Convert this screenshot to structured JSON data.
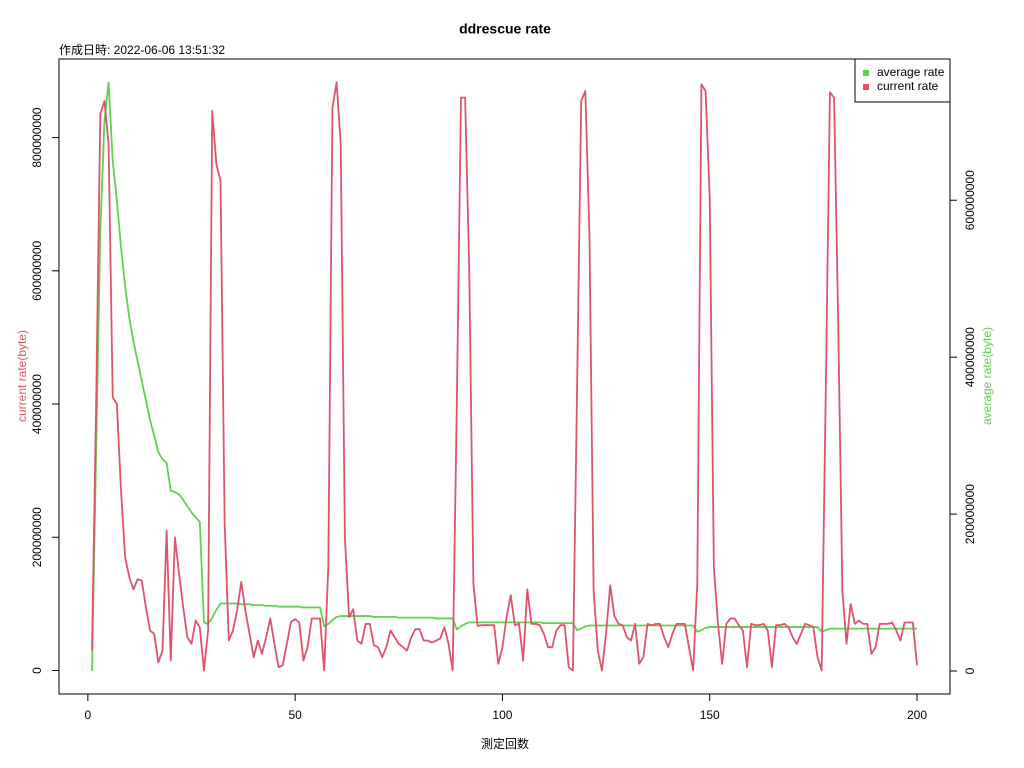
{
  "chart_data": {
    "type": "line",
    "title": "ddrescue rate",
    "subtitle": "作成日時: 2022-06-06 13:51:32",
    "xlabel": "測定回数",
    "ylabel": "current rate(byte)",
    "y2label": "average rate(byte)",
    "legend": "topright",
    "x": [
      1,
      2,
      3,
      4,
      5,
      6,
      7,
      8,
      9,
      10,
      11,
      12,
      13,
      14,
      15,
      16,
      17,
      18,
      19,
      20,
      21,
      22,
      23,
      24,
      25,
      26,
      27,
      28,
      29,
      30,
      31,
      32,
      33,
      34,
      35,
      36,
      37,
      38,
      39,
      40,
      41,
      42,
      43,
      44,
      45,
      46,
      47,
      48,
      49,
      50,
      51,
      52,
      53,
      54,
      55,
      56,
      57,
      58,
      59,
      60,
      61,
      62,
      63,
      64,
      65,
      66,
      67,
      68,
      69,
      70,
      71,
      72,
      73,
      74,
      75,
      76,
      77,
      78,
      79,
      80,
      81,
      82,
      83,
      84,
      85,
      86,
      87,
      88,
      89,
      90,
      91,
      92,
      93,
      94,
      95,
      96,
      97,
      98,
      99,
      100,
      101,
      102,
      103,
      104,
      105,
      106,
      107,
      108,
      109,
      110,
      111,
      112,
      113,
      114,
      115,
      116,
      117,
      118,
      119,
      120,
      121,
      122,
      123,
      124,
      125,
      126,
      127,
      128,
      129,
      130,
      131,
      132,
      133,
      134,
      135,
      136,
      137,
      138,
      139,
      140,
      141,
      142,
      143,
      144,
      145,
      146,
      147,
      148,
      149,
      150,
      151,
      152,
      153,
      154,
      155,
      156,
      157,
      158,
      159,
      160,
      161,
      162,
      163,
      164,
      165,
      166,
      167,
      168,
      169,
      170,
      171,
      172,
      173,
      174,
      175,
      176,
      177,
      178,
      179,
      180,
      181,
      182,
      183,
      184,
      185,
      186,
      187,
      188,
      189,
      190,
      191,
      192,
      193,
      194,
      195,
      196,
      197,
      198,
      199,
      200
    ],
    "series": [
      {
        "name": "average rate",
        "color": "#61D04F",
        "axis": "y2",
        "values": [
          0,
          280000000.0,
          560000000.0,
          700000000.0,
          750000000.0,
          650000000.0,
          600000000.0,
          540000000.0,
          490000000.0,
          450000000.0,
          420000000.0,
          395000000.0,
          370000000.0,
          345000000.0,
          320000000.0,
          300000000.0,
          279000000.0,
          270000000.0,
          265000000.0,
          230000000.0,
          228000000.0,
          225000000.0,
          218000000.0,
          210000000.0,
          202000000.0,
          196000000.0,
          190000000.0,
          62000000.0,
          60000000.0,
          68000000.0,
          78000000.0,
          86000000.0,
          86000000.0,
          86000000.0,
          86000000.0,
          86000000.0,
          85000000.0,
          85000000.0,
          85000000.0,
          84000000.0,
          84000000.0,
          84000000.0,
          83000000.0,
          83000000.0,
          83000000.0,
          82000000.0,
          82000000.0,
          82000000.0,
          82000000.0,
          82000000.0,
          82000000.0,
          81000000.0,
          81000000.0,
          81000000.0,
          81000000.0,
          81000000.0,
          57000000.0,
          60000000.0,
          65000000.0,
          69000000.0,
          70000000.0,
          70000000.0,
          70000000.0,
          70000000.0,
          70000000.0,
          70000000.0,
          70000000.0,
          70000000.0,
          69000000.0,
          69000000.0,
          69000000.0,
          69000000.0,
          69000000.0,
          69000000.0,
          68000000.0,
          68000000.0,
          68000000.0,
          68000000.0,
          68000000.0,
          68000000.0,
          68000000.0,
          68000000.0,
          68000000.0,
          67000000.0,
          67000000.0,
          67000000.0,
          67000000.0,
          67000000.0,
          53000000.0,
          57000000.0,
          60000000.0,
          62000000.0,
          62000000.0,
          62000000.0,
          62000000.0,
          62000000.0,
          62000000.0,
          62000000.0,
          62000000.0,
          62000000.0,
          62000000.0,
          62000000.0,
          62000000.0,
          62000000.0,
          62000000.0,
          62000000.0,
          62000000.0,
          62000000.0,
          62000000.0,
          61000000.0,
          61000000.0,
          61000000.0,
          61000000.0,
          61000000.0,
          61000000.0,
          61000000.0,
          61000000.0,
          52000000.0,
          54000000.0,
          57000000.0,
          58000000.0,
          58000000.0,
          58000000.0,
          58000000.0,
          58000000.0,
          58000000.0,
          58000000.0,
          58000000.0,
          58000000.0,
          58000000.0,
          58000000.0,
          58000000.0,
          58000000.0,
          58000000.0,
          58000000.0,
          58000000.0,
          58000000.0,
          58000000.0,
          58000000.0,
          58000000.0,
          58000000.0,
          58000000.0,
          58000000.0,
          58000000.0,
          58000000.0,
          58000000.0,
          50000000.0,
          52000000.0,
          55000000.0,
          56000000.0,
          56000000.0,
          56000000.0,
          56000000.0,
          56000000.0,
          56000000.0,
          56000000.0,
          56000000.0,
          56000000.0,
          56000000.0,
          56000000.0,
          56000000.0,
          56000000.0,
          56000000.0,
          56000000.0,
          56000000.0,
          56000000.0,
          56000000.0,
          56000000.0,
          56000000.0,
          56000000.0,
          56000000.0,
          56000000.0,
          56000000.0,
          56000000.0,
          56000000.0,
          56000000.0,
          50000000.0,
          52000000.0,
          54000000.0,
          54000000.0,
          54000000.0,
          54000000.0,
          54000000.0,
          54000000.0,
          54000000.0,
          54000000.0,
          54000000.0,
          54000000.0,
          54000000.0,
          54000000.0,
          54000000.0,
          54000000.0,
          54000000.0,
          54000000.0,
          54000000.0,
          54000000.0,
          54000000.0,
          54000000.0,
          54000000.0,
          54000000.0
        ]
      },
      {
        "name": "current rate",
        "color": "#DF536B",
        "values": [
          30000000.0,
          400000000.0,
          835000000.0,
          855000000.0,
          790000000.0,
          410000000.0,
          400000000.0,
          270000000.0,
          170000000.0,
          140000000.0,
          122000000.0,
          137000000.0,
          135000000.0,
          95000000.0,
          60000000.0,
          55000000.0,
          12000000.0,
          30000000.0,
          210000000.0,
          15000000.0,
          200000000.0,
          145000000.0,
          95000000.0,
          50000000.0,
          40000000.0,
          75000000.0,
          65000000.0,
          0,
          60000000.0,
          840000000.0,
          760000000.0,
          735000000.0,
          220000000.0,
          45000000.0,
          60000000.0,
          90000000.0,
          133000000.0,
          90000000.0,
          55000000.0,
          20000000.0,
          45000000.0,
          25000000.0,
          50000000.0,
          78000000.0,
          40000000.0,
          5000000.0,
          8000000.0,
          40000000.0,
          73000000.0,
          77000000.0,
          72000000.0,
          15000000.0,
          35000000.0,
          78000000.0,
          78000000.0,
          78000000.0,
          0,
          155000000.0,
          845000000.0,
          883000000.0,
          790000000.0,
          200000000.0,
          80000000.0,
          92000000.0,
          45000000.0,
          40000000.0,
          70000000.0,
          70000000.0,
          38000000.0,
          35000000.0,
          20000000.0,
          35000000.0,
          60000000.0,
          50000000.0,
          40000000.0,
          35000000.0,
          30000000.0,
          50000000.0,
          62000000.0,
          62000000.0,
          45000000.0,
          45000000.0,
          42000000.0,
          45000000.0,
          48000000.0,
          65000000.0,
          40000000.0,
          0,
          400000000.0,
          860000000.0,
          860000000.0,
          600000000.0,
          130000000.0,
          67000000.0,
          68000000.0,
          68000000.0,
          68000000.0,
          68000000.0,
          10000000.0,
          35000000.0,
          80000000.0,
          113000000.0,
          68000000.0,
          70000000.0,
          15000000.0,
          122000000.0,
          70000000.0,
          70000000.0,
          68000000.0,
          55000000.0,
          35000000.0,
          35000000.0,
          60000000.0,
          68000000.0,
          68000000.0,
          5000000.0,
          0,
          420000000.0,
          855000000.0,
          870000000.0,
          650000000.0,
          120000000.0,
          30000000.0,
          0,
          55000000.0,
          128000000.0,
          82000000.0,
          70000000.0,
          68000000.0,
          50000000.0,
          45000000.0,
          70000000.0,
          10000000.0,
          20000000.0,
          70000000.0,
          68000000.0,
          70000000.0,
          70000000.0,
          50000000.0,
          35000000.0,
          55000000.0,
          70000000.0,
          70000000.0,
          70000000.0,
          35000000.0,
          0,
          130000000.0,
          880000000.0,
          870000000.0,
          710000000.0,
          155000000.0,
          70000000.0,
          10000000.0,
          70000000.0,
          78000000.0,
          78000000.0,
          68000000.0,
          60000000.0,
          5000000.0,
          70000000.0,
          68000000.0,
          68000000.0,
          70000000.0,
          60000000.0,
          5000000.0,
          68000000.0,
          68000000.0,
          70000000.0,
          65000000.0,
          50000000.0,
          40000000.0,
          55000000.0,
          70000000.0,
          68000000.0,
          65000000.0,
          20000000.0,
          0,
          420000000.0,
          868000000.0,
          860000000.0,
          520000000.0,
          120000000.0,
          40000000.0,
          100000000.0,
          70000000.0,
          75000000.0,
          70000000.0,
          70000000.0,
          25000000.0,
          35000000.0,
          70000000.0,
          70000000.0,
          70000000.0,
          72000000.0,
          60000000.0,
          45000000.0,
          72000000.0,
          72000000.0,
          72000000.0,
          8000000.0
        ]
      }
    ],
    "xlim": [
      -6.96,
      207.96
    ],
    "xticks": [
      0,
      50,
      100,
      150,
      200
    ],
    "ylim": [
      -35300000,
      918000000
    ],
    "yticks": [
      0,
      200000000,
      400000000,
      600000000,
      800000000
    ],
    "y2lim": [
      -29300000,
      780000000
    ],
    "y2ticks": [
      0,
      200000000,
      400000000,
      600000000
    ]
  }
}
